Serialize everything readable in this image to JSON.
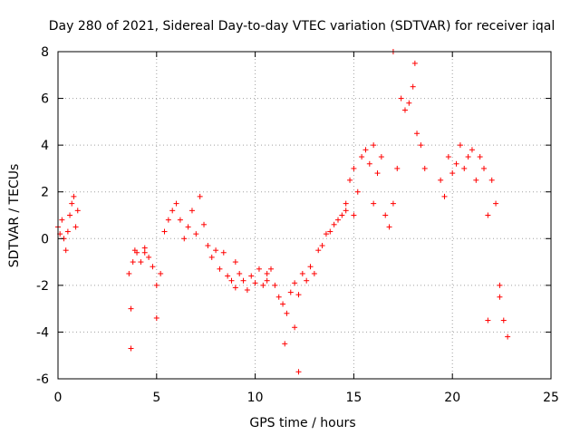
{
  "chart_data": {
    "type": "scatter",
    "title": "Day 280 of 2021, Sidereal Day-to-day VTEC variation (SDTVAR) for receiver iqal",
    "xlabel": "GPS time / hours",
    "ylabel": "SDTVAR / TECUs",
    "xlim": [
      0,
      25
    ],
    "ylim": [
      -6,
      8
    ],
    "xticks": [
      0,
      5,
      10,
      15,
      20,
      25
    ],
    "yticks": [
      -6,
      -4,
      -2,
      0,
      2,
      4,
      6,
      8
    ],
    "grid": true,
    "marker": "+",
    "series_color": "#ff0000",
    "series": [
      {
        "name": "SDTVAR",
        "x": [
          0.0,
          0.1,
          0.2,
          0.3,
          0.4,
          0.5,
          0.6,
          0.7,
          0.8,
          0.9,
          1.0,
          3.6,
          3.7,
          3.8,
          3.9,
          4.0,
          4.2,
          4.4,
          4.6,
          4.8,
          5.0,
          5.2,
          5.4,
          5.6,
          5.8,
          6.0,
          6.2,
          6.4,
          6.6,
          6.8,
          7.0,
          7.2,
          7.4,
          7.6,
          7.8,
          8.0,
          8.2,
          8.4,
          8.6,
          8.8,
          9.0,
          9.2,
          9.4,
          9.6,
          9.8,
          10.0,
          10.2,
          10.4,
          10.6,
          10.8,
          11.0,
          11.2,
          11.4,
          11.6,
          11.8,
          12.0,
          12.2,
          12.4,
          12.6,
          12.8,
          13.0,
          13.2,
          13.4,
          13.6,
          13.8,
          14.0,
          14.2,
          14.4,
          14.6,
          14.8,
          15.0,
          15.2,
          15.4,
          15.6,
          15.8,
          16.0,
          16.2,
          16.4,
          16.6,
          16.8,
          17.0,
          17.2,
          17.4,
          17.6,
          17.8,
          18.0,
          18.2,
          18.4,
          18.6,
          19.4,
          19.6,
          19.8,
          20.0,
          20.2,
          20.4,
          20.6,
          20.8,
          21.0,
          21.2,
          21.4,
          21.6,
          21.8,
          22.0,
          22.2,
          22.4,
          22.6,
          22.8,
          3.7,
          11.5,
          12.2,
          5.0,
          12.0,
          21.8,
          22.4,
          17.0,
          18.1,
          16.0,
          15.0,
          4.4,
          10.6,
          9.0,
          14.6
        ],
        "y": [
          0.5,
          0.2,
          0.8,
          0.0,
          -0.5,
          0.3,
          1.0,
          1.5,
          1.8,
          0.5,
          1.2,
          -1.5,
          -3.0,
          -1.0,
          -0.5,
          -0.6,
          -1.0,
          -0.6,
          -0.8,
          -1.2,
          -2.0,
          -1.5,
          0.3,
          0.8,
          1.2,
          1.5,
          0.8,
          0.0,
          0.5,
          1.2,
          0.2,
          1.8,
          0.6,
          -0.3,
          -0.8,
          -0.5,
          -1.3,
          -0.6,
          -1.6,
          -1.8,
          -2.1,
          -1.5,
          -1.8,
          -2.2,
          -1.6,
          -1.9,
          -1.3,
          -2.0,
          -1.8,
          -1.3,
          -2.0,
          -2.5,
          -2.8,
          -3.2,
          -2.3,
          -1.9,
          -2.4,
          -1.5,
          -1.8,
          -1.2,
          -1.5,
          -0.5,
          -0.3,
          0.2,
          0.3,
          0.6,
          0.8,
          1.0,
          1.5,
          2.5,
          3.0,
          2.0,
          3.5,
          3.8,
          3.2,
          1.5,
          2.8,
          3.5,
          1.0,
          0.5,
          1.5,
          3.0,
          6.0,
          5.5,
          5.8,
          6.5,
          4.5,
          4.0,
          3.0,
          2.5,
          1.8,
          3.5,
          2.8,
          3.2,
          4.0,
          3.0,
          3.5,
          3.8,
          2.5,
          3.5,
          3.0,
          1.0,
          2.5,
          1.5,
          -2.0,
          -3.5,
          -4.2,
          -4.7,
          -4.5,
          -5.7,
          -3.4,
          -3.8,
          -3.5,
          -2.5,
          8.0,
          7.5,
          4.0,
          1.0,
          -0.4,
          -1.5,
          -1.0,
          1.2
        ]
      }
    ]
  }
}
